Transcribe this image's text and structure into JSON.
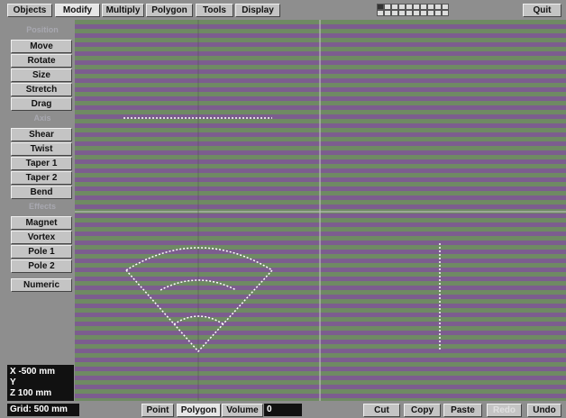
{
  "menu": {
    "tabs": [
      "Objects",
      "Modify",
      "Multiply",
      "Polygon",
      "Tools",
      "Display"
    ],
    "quit": "Quit"
  },
  "left_panel": {
    "sections": [
      {
        "label": "Position",
        "buttons": [
          "Move",
          "Rotate",
          "Size",
          "Stretch",
          "Drag"
        ]
      },
      {
        "label": "Axis",
        "buttons": [
          "Shear",
          "Twist",
          "Taper 1",
          "Taper 2",
          "Bend"
        ]
      },
      {
        "label": "Effects",
        "buttons": [
          "Magnet",
          "Vortex",
          "Pole 1",
          "Pole 2"
        ]
      }
    ],
    "numeric": "Numeric"
  },
  "coordinates": {
    "x": "X -500 mm",
    "y": "Y",
    "z": "Z 100 mm"
  },
  "status_bar": {
    "grid": "Grid: 500 mm",
    "select_modes": [
      "Point",
      "Polygon",
      "Volume"
    ],
    "count": "0",
    "actions": [
      "Cut",
      "Copy",
      "Paste",
      "Redo",
      "Undo"
    ]
  }
}
